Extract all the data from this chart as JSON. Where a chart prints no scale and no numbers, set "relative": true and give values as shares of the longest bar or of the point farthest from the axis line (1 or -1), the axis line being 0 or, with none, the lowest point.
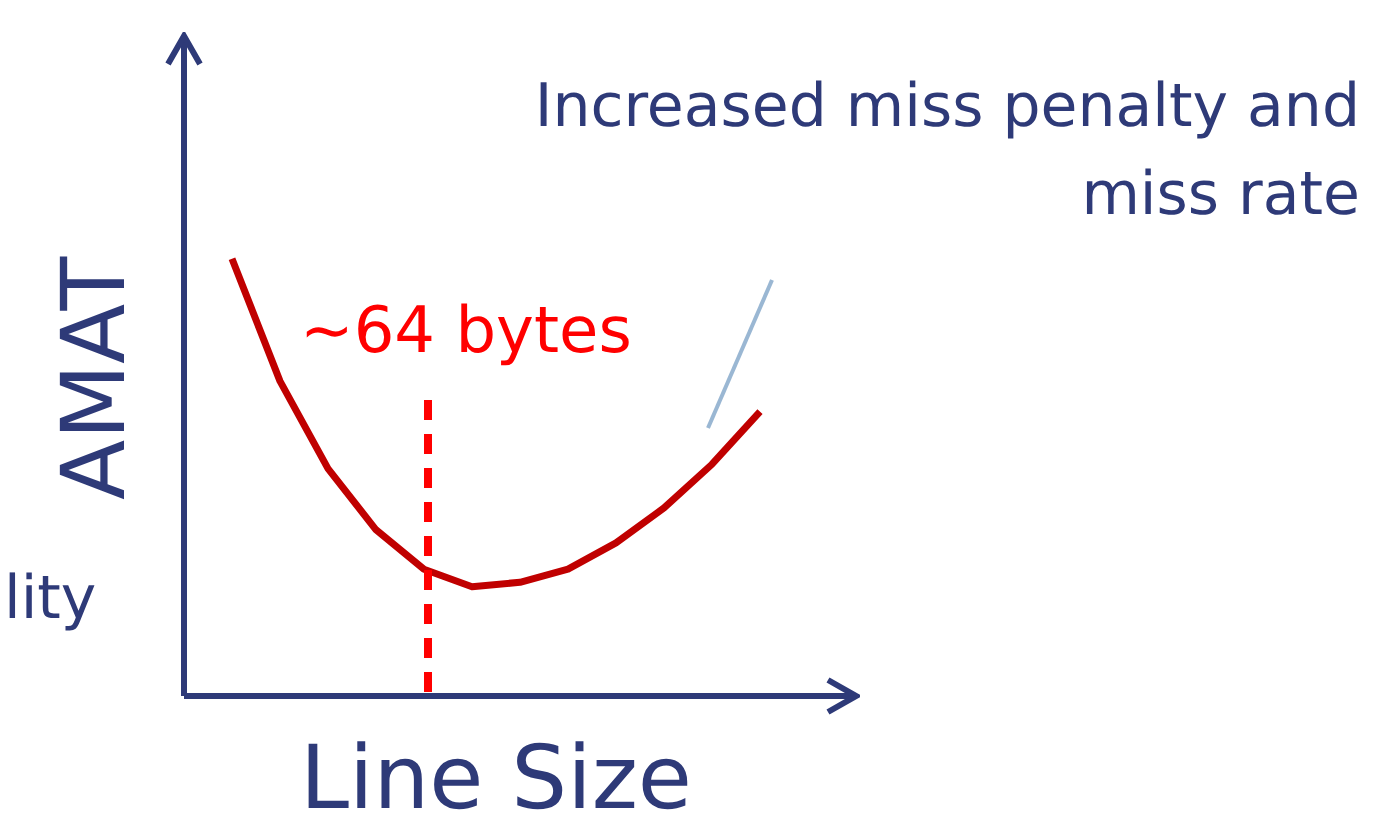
{
  "chart_data": {
    "type": "line",
    "ylabel": "AMAT",
    "xlabel": "Line Size",
    "relative": true,
    "categories": [
      null,
      null,
      null,
      null,
      null,
      null,
      null,
      null,
      null,
      null,
      null,
      null,
      null,
      null,
      null
    ],
    "annotations": [
      "Increased miss penalty and miss rate",
      "lity",
      "~64 bytes"
    ],
    "series": [
      {
        "color": "#c00000",
        "values": [
          null,
          1,
          0.72,
          0.52,
          0.38,
          0.29,
          0.25,
          0.26,
          0.29,
          0.35,
          0.43,
          0.53,
          0.65,
          null,
          null
        ]
      }
    ]
  }
}
